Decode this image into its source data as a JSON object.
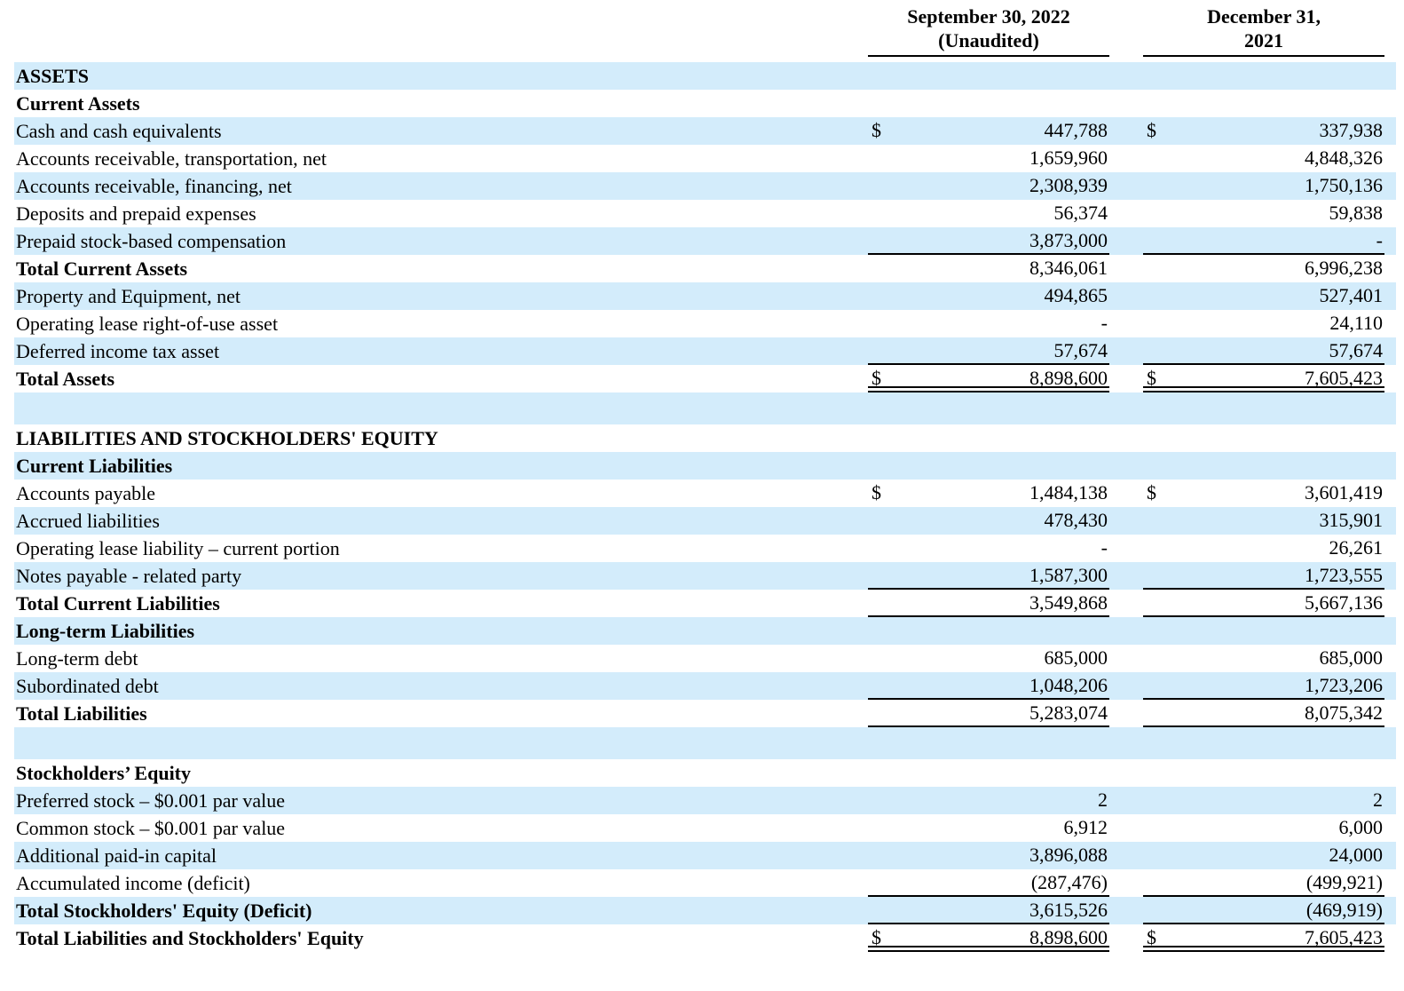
{
  "colors": {
    "row_shade": "#d3ecfb",
    "text": "#000000",
    "rule": "#000000"
  },
  "header": {
    "col1_line1": "September 30, 2022",
    "col1_line2": "(Unaudited)",
    "col2_line1": "December 31,",
    "col2_line2": "2021"
  },
  "table": {
    "rows": [
      {
        "label": "ASSETS",
        "bold": true,
        "shaded": true,
        "blank": false,
        "d1": "",
        "v1": "",
        "d2": "",
        "v2": "",
        "u": "none"
      },
      {
        "label": "Current Assets",
        "bold": true,
        "shaded": false,
        "blank": false,
        "d1": "",
        "v1": "",
        "d2": "",
        "v2": "",
        "u": "none"
      },
      {
        "label": "Cash and cash equivalents",
        "bold": false,
        "shaded": true,
        "blank": false,
        "d1": "$",
        "v1": "447,788",
        "d2": "$",
        "v2": "337,938",
        "u": "none"
      },
      {
        "label": "Accounts receivable, transportation, net",
        "bold": false,
        "shaded": false,
        "blank": false,
        "d1": "",
        "v1": "1,659,960",
        "d2": "",
        "v2": "4,848,326",
        "u": "none"
      },
      {
        "label": "Accounts receivable, financing, net",
        "bold": false,
        "shaded": true,
        "blank": false,
        "d1": "",
        "v1": "2,308,939",
        "d2": "",
        "v2": "1,750,136",
        "u": "none"
      },
      {
        "label": "Deposits and prepaid expenses",
        "bold": false,
        "shaded": false,
        "blank": false,
        "d1": "",
        "v1": "56,374",
        "d2": "",
        "v2": "59,838",
        "u": "none"
      },
      {
        "label": "Prepaid stock-based compensation",
        "bold": false,
        "shaded": true,
        "blank": false,
        "d1": "",
        "v1": "3,873,000",
        "d2": "",
        "v2": "-",
        "u": "single"
      },
      {
        "label": "Total Current Assets",
        "bold": true,
        "shaded": false,
        "blank": false,
        "d1": "",
        "v1": "8,346,061",
        "d2": "",
        "v2": "6,996,238",
        "u": "none"
      },
      {
        "label": "Property and Equipment, net",
        "bold": false,
        "shaded": true,
        "blank": false,
        "d1": "",
        "v1": "494,865",
        "d2": "",
        "v2": "527,401",
        "u": "none"
      },
      {
        "label": "Operating lease right-of-use asset",
        "bold": false,
        "shaded": false,
        "blank": false,
        "d1": "",
        "v1": "-",
        "d2": "",
        "v2": "24,110",
        "u": "none"
      },
      {
        "label": "Deferred income tax asset",
        "bold": false,
        "shaded": true,
        "blank": false,
        "d1": "",
        "v1": "57,674",
        "d2": "",
        "v2": "57,674",
        "u": "single"
      },
      {
        "label": "Total Assets",
        "bold": true,
        "shaded": false,
        "blank": false,
        "d1": "$",
        "v1": "8,898,600",
        "d2": "$",
        "v2": "7,605,423",
        "u": "double"
      },
      {
        "label": "",
        "bold": false,
        "shaded": true,
        "blank": true,
        "d1": "",
        "v1": "",
        "d2": "",
        "v2": "",
        "u": "none"
      },
      {
        "label": "LIABILITIES AND STOCKHOLDERS' EQUITY",
        "bold": true,
        "shaded": false,
        "blank": false,
        "d1": "",
        "v1": "",
        "d2": "",
        "v2": "",
        "u": "none"
      },
      {
        "label": "Current Liabilities",
        "bold": true,
        "shaded": true,
        "blank": false,
        "d1": "",
        "v1": "",
        "d2": "",
        "v2": "",
        "u": "none"
      },
      {
        "label": "Accounts payable",
        "bold": false,
        "shaded": false,
        "blank": false,
        "d1": "$",
        "v1": "1,484,138",
        "d2": "$",
        "v2": "3,601,419",
        "u": "none"
      },
      {
        "label": "Accrued liabilities",
        "bold": false,
        "shaded": true,
        "blank": false,
        "d1": "",
        "v1": "478,430",
        "d2": "",
        "v2": "315,901",
        "u": "none"
      },
      {
        "label": "Operating lease liability – current portion",
        "bold": false,
        "shaded": false,
        "blank": false,
        "d1": "",
        "v1": "-",
        "d2": "",
        "v2": "26,261",
        "u": "none"
      },
      {
        "label": "Notes payable - related party",
        "bold": false,
        "shaded": true,
        "blank": false,
        "d1": "",
        "v1": "1,587,300",
        "d2": "",
        "v2": "1,723,555",
        "u": "single"
      },
      {
        "label": "Total Current Liabilities",
        "bold": true,
        "shaded": false,
        "blank": false,
        "d1": "",
        "v1": "3,549,868",
        "d2": "",
        "v2": "5,667,136",
        "u": "single"
      },
      {
        "label": "Long-term Liabilities",
        "bold": true,
        "shaded": true,
        "blank": false,
        "d1": "",
        "v1": "",
        "d2": "",
        "v2": "",
        "u": "none"
      },
      {
        "label": "Long-term debt",
        "bold": false,
        "shaded": false,
        "blank": false,
        "d1": "",
        "v1": "685,000",
        "d2": "",
        "v2": "685,000",
        "u": "none"
      },
      {
        "label": "Subordinated debt",
        "bold": false,
        "shaded": true,
        "blank": false,
        "d1": "",
        "v1": "1,048,206",
        "d2": "",
        "v2": "1,723,206",
        "u": "single"
      },
      {
        "label": "Total Liabilities",
        "bold": true,
        "shaded": false,
        "blank": false,
        "d1": "",
        "v1": "5,283,074",
        "d2": "",
        "v2": "8,075,342",
        "u": "single"
      },
      {
        "label": "",
        "bold": false,
        "shaded": true,
        "blank": true,
        "d1": "",
        "v1": "",
        "d2": "",
        "v2": "",
        "u": "none"
      },
      {
        "label": "Stockholders’ Equity",
        "bold": true,
        "shaded": false,
        "blank": false,
        "d1": "",
        "v1": "",
        "d2": "",
        "v2": "",
        "u": "none"
      },
      {
        "label": "Preferred stock – $0.001 par value",
        "bold": false,
        "shaded": true,
        "blank": false,
        "d1": "",
        "v1": "2",
        "d2": "",
        "v2": "2",
        "u": "none"
      },
      {
        "label": "Common stock – $0.001 par value",
        "bold": false,
        "shaded": false,
        "blank": false,
        "d1": "",
        "v1": "6,912",
        "d2": "",
        "v2": "6,000",
        "u": "none"
      },
      {
        "label": "Additional paid-in capital",
        "bold": false,
        "shaded": true,
        "blank": false,
        "d1": "",
        "v1": "3,896,088",
        "d2": "",
        "v2": "24,000",
        "u": "none"
      },
      {
        "label": "Accumulated income (deficit)",
        "bold": false,
        "shaded": false,
        "blank": false,
        "d1": "",
        "v1": "(287,476)",
        "d2": "",
        "v2": "(499,921)",
        "u": "single"
      },
      {
        "label": "Total Stockholders' Equity (Deficit)",
        "bold": true,
        "shaded": true,
        "blank": false,
        "d1": "",
        "v1": "3,615,526",
        "d2": "",
        "v2": "(469,919)",
        "u": "single"
      },
      {
        "label": "Total Liabilities and Stockholders' Equity",
        "bold": true,
        "shaded": false,
        "blank": false,
        "d1": "$",
        "v1": "8,898,600",
        "d2": "$",
        "v2": "7,605,423",
        "u": "double"
      }
    ]
  }
}
